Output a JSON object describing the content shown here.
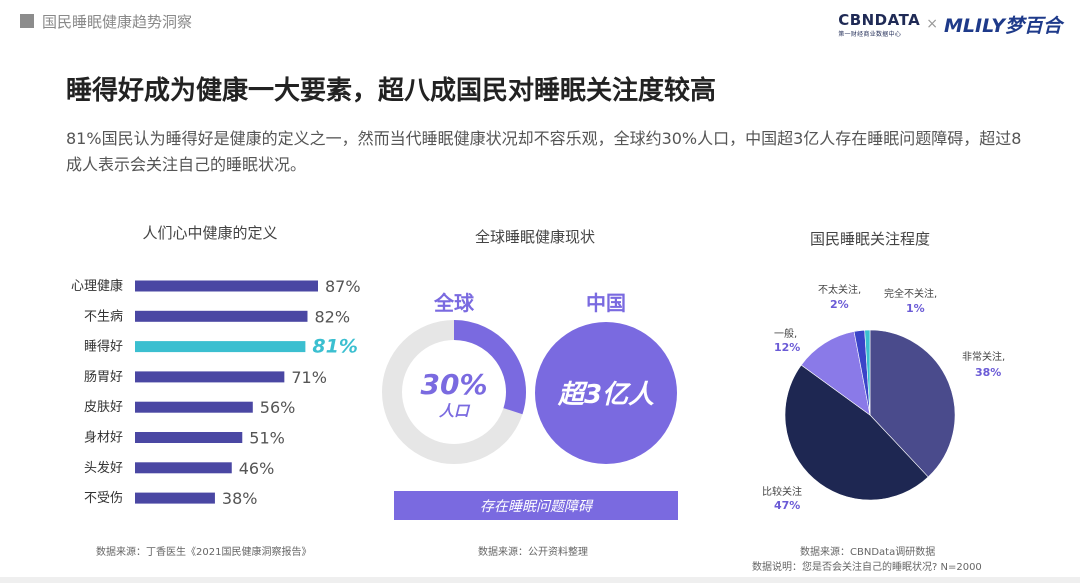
{
  "header": {
    "section_title": "国民睡眠健康趋势洞察",
    "brand_cbn": "CBNDATA",
    "brand_cbn_sub": "第一财经商业数据中心",
    "brand_sep": "×",
    "brand_mlily": "MLILY梦百合"
  },
  "headline": "睡得好成为健康一大要素，超八成国民对睡眠关注度较高",
  "subtext": "81%国民认为睡得好是健康的定义之一，然而当代睡眠健康状况却不容乐观，全球约30%人口，中国超3亿人存在睡眠问题障碍，超过8成人表示会关注自己的睡眠状况。",
  "chart_data": [
    {
      "type": "bar",
      "title": "人们心中健康的定义",
      "categories": [
        "心理健康",
        "不生病",
        "睡得好",
        "肠胃好",
        "皮肤好",
        "身材好",
        "头发好",
        "不受伤"
      ],
      "values": [
        87,
        82,
        81,
        71,
        56,
        51,
        46,
        38
      ],
      "value_labels": [
        "87%",
        "82%",
        "81%",
        "71%",
        "56%",
        "51%",
        "46%",
        "38%"
      ],
      "highlight_index": 2,
      "colors": {
        "bar": "#4a47a3",
        "highlight": "#3bbfd0"
      },
      "source": "数据来源：丁香医生《2021国民健康洞察报告》"
    },
    {
      "type": "donut",
      "title": "全球睡眠健康现状",
      "global": {
        "label": "全球",
        "value": 30,
        "value_text": "30%",
        "unit": "人口"
      },
      "china": {
        "label": "中国",
        "value_text": "超3亿人"
      },
      "banner": "存在睡眠问题障碍",
      "colors": {
        "accent": "#7a6ae0",
        "track": "#e6e6e6"
      },
      "source": "数据来源：公开资料整理"
    },
    {
      "type": "pie",
      "title": "国民睡眠关注程度",
      "slices": [
        {
          "name": "非常关注,",
          "value": 38,
          "value_text": "38%",
          "color": "#4a4b8c"
        },
        {
          "name": "比较关注",
          "value": 47,
          "value_text": "47%",
          "color": "#1e2752"
        },
        {
          "name": "一般,",
          "value": 12,
          "value_text": "12%",
          "color": "#8a7ae8"
        },
        {
          "name": "不太关注,",
          "value": 2,
          "value_text": "2%",
          "color": "#3a44c8"
        },
        {
          "name": "完全不关注,",
          "value": 1,
          "value_text": "1%",
          "color": "#3bbfd0"
        }
      ],
      "source": "数据来源：CBNData调研数据",
      "note": "数据说明：您是否会关注自己的睡眠状况? N=2000"
    }
  ]
}
